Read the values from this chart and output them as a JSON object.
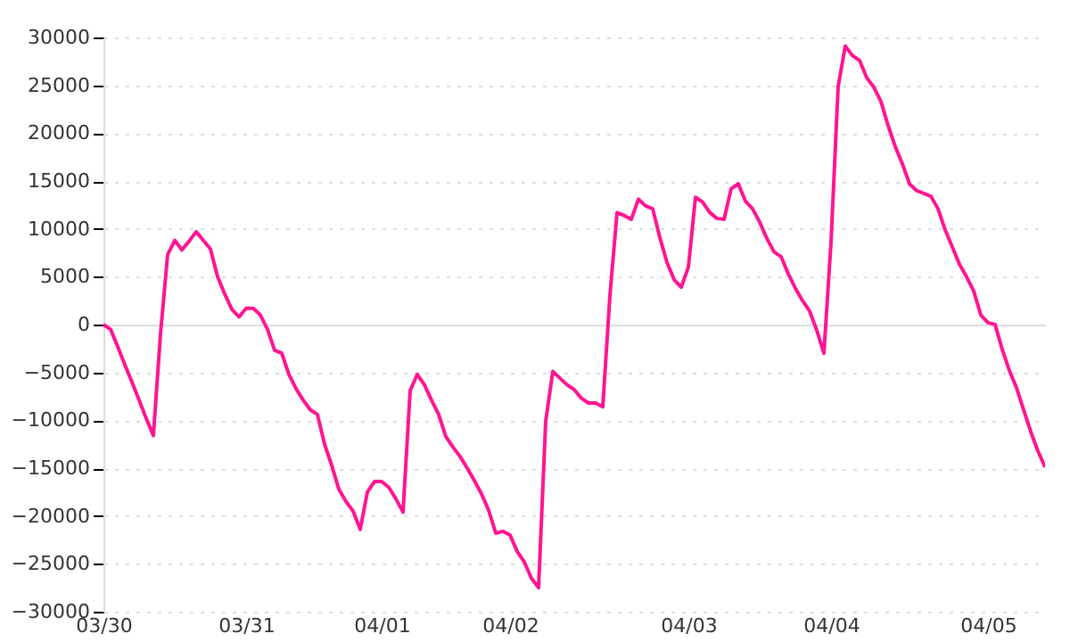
{
  "chart_data": {
    "type": "line",
    "categories": [
      "03/30",
      null,
      null,
      null,
      null,
      null,
      null,
      null,
      null,
      null,
      null,
      null,
      null,
      null,
      null,
      null,
      null,
      null,
      null,
      null,
      "03/31",
      null,
      null,
      null,
      null,
      null,
      null,
      null,
      null,
      null,
      null,
      null,
      null,
      null,
      null,
      null,
      null,
      null,
      null,
      "04/01",
      null,
      null,
      null,
      null,
      null,
      null,
      null,
      null,
      null,
      null,
      null,
      null,
      null,
      null,
      null,
      null,
      null,
      "04/02",
      null,
      null,
      null,
      null,
      null,
      null,
      null,
      null,
      null,
      null,
      null,
      null,
      null,
      null,
      null,
      null,
      null,
      null,
      null,
      null,
      null,
      null,
      null,
      null,
      "04/03",
      null,
      null,
      null,
      null,
      null,
      null,
      null,
      null,
      null,
      null,
      null,
      null,
      null,
      null,
      null,
      null,
      null,
      null,
      null,
      "04/04",
      null,
      null,
      null,
      null,
      null,
      null,
      null,
      null,
      null,
      null,
      null,
      null,
      null,
      null,
      null,
      null,
      null,
      null,
      null,
      null,
      null,
      "04/05",
      null,
      null,
      null,
      null,
      null,
      null,
      null,
      null
    ],
    "series": [
      {
        "color": "#ff1493",
        "values": [
          0,
          -500,
          -2300,
          -4200,
          -6000,
          -7900,
          -9800,
          -11600,
          -1000,
          7300,
          8800,
          7800,
          8700,
          9700,
          8800,
          7900,
          5000,
          3200,
          1600,
          800,
          1700,
          1700,
          1000,
          -500,
          -2700,
          -3000,
          -5200,
          -6700,
          -7900,
          -8900,
          -9400,
          -12500,
          -14700,
          -17200,
          -18500,
          -19500,
          -21400,
          -17500,
          -16400,
          -16400,
          -17000,
          -18200,
          -19600,
          -6900,
          -5200,
          -6300,
          -7900,
          -9400,
          -11700,
          -12800,
          -13800,
          -15000,
          -16300,
          -17700,
          -19400,
          -21800,
          -21600,
          -22000,
          -23700,
          -24800,
          -26500,
          -27500,
          -10100,
          -4900,
          -5600,
          -6300,
          -6800,
          -7700,
          -8200,
          -8200,
          -8600,
          3000,
          11700,
          11400,
          11000,
          13100,
          12400,
          12100,
          9100,
          6500,
          4700,
          3900,
          6000,
          13300,
          12800,
          11700,
          11100,
          11000,
          14200,
          14700,
          12900,
          12100,
          10700,
          9000,
          7600,
          7100,
          5300,
          3800,
          2500,
          1400,
          -600,
          -3000,
          8600,
          24900,
          29100,
          28100,
          27600,
          25800,
          24800,
          23300,
          20800,
          18600,
          16800,
          14700,
          14000,
          13700,
          13400,
          12100,
          9900,
          8100,
          6300,
          5000,
          3500,
          1000,
          200,
          0,
          -2600,
          -4800,
          -6600,
          -8900,
          -11200,
          -13200,
          -14900
        ]
      }
    ],
    "ylim": [
      -30000,
      30000
    ],
    "yticks": [
      -30000,
      -25000,
      -20000,
      -15000,
      -10000,
      -5000,
      0,
      5000,
      10000,
      15000,
      20000,
      25000,
      30000
    ],
    "grid": "y",
    "marker": "none",
    "line_style": "solid"
  }
}
